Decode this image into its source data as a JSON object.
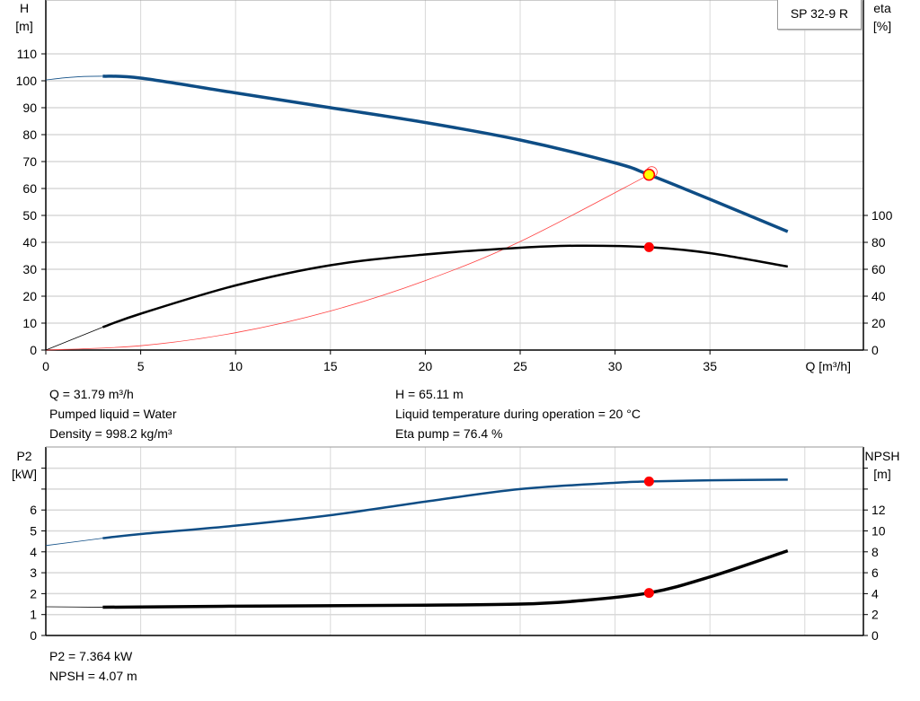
{
  "model_label": "SP 32-9 R",
  "colors": {
    "head": "#0e4d85",
    "eta": "#000000",
    "system": "#ff4040",
    "p2": "#0e4d85",
    "npsh": "#000000",
    "duty_point": "#ff0000",
    "head_point": "#ffff00",
    "grid": "#d8d8d8"
  },
  "info_top": [
    "Q = 31.79 m³/h",
    "Pumped liquid = Water",
    "Density = 998.2 kg/m³",
    "H = 65.11 m",
    "Liquid temperature during operation = 20 °C",
    "Eta pump = 76.4 %"
  ],
  "info_bottom": [
    "P2 = 7.364 kW",
    "NPSH = 4.07 m"
  ],
  "chart_data": [
    {
      "type": "line",
      "xlabel": "Q [m³/h]",
      "ylabel": "H [m]",
      "y2label": "eta [%]",
      "xlim": [
        0,
        43
      ],
      "ylim": [
        0,
        120
      ],
      "y2lim": [
        0,
        260
      ],
      "xticks": [
        0,
        5,
        10,
        15,
        20,
        25,
        30,
        35
      ],
      "yticks": [
        0,
        10,
        20,
        30,
        40,
        50,
        60,
        70,
        80,
        90,
        100,
        110
      ],
      "y2ticks": [
        0,
        20,
        40,
        60,
        80,
        100
      ],
      "grid": true,
      "series": [
        {
          "name": "H",
          "axis": "left",
          "x": [
            0,
            1,
            2,
            3,
            5,
            10,
            15,
            20,
            25,
            30,
            31.79,
            35,
            39.1
          ],
          "y": [
            100.3,
            101.1,
            101.6,
            101.7,
            101,
            95.5,
            90,
            84.5,
            78,
            69.5,
            65.11,
            56,
            44
          ]
        },
        {
          "name": "eta",
          "axis": "right",
          "x": [
            0,
            3,
            5,
            10,
            15,
            20,
            25,
            28,
            31.79,
            35,
            39.1
          ],
          "y": [
            0,
            17,
            27,
            48,
            63,
            71,
            76,
            77.5,
            76.4,
            72,
            62
          ]
        },
        {
          "name": "system",
          "axis": "left",
          "x": [
            0,
            5,
            10,
            15,
            20,
            25,
            31.79
          ],
          "y": [
            0,
            1.61,
            6.44,
            14.5,
            25.8,
            40.3,
            65.11
          ]
        }
      ],
      "duty_point": {
        "Q": 31.79,
        "H": 65.11,
        "eta": 76.4
      }
    },
    {
      "type": "line",
      "ylabel": "P2 [kW]",
      "y2label": "NPSH [m]",
      "xlim": [
        0,
        43
      ],
      "ylim": [
        0,
        8.7
      ],
      "y2lim": [
        0,
        17.4
      ],
      "yticks": [
        0,
        1,
        2,
        3,
        4,
        5,
        6,
        7,
        8
      ],
      "ytick_labels": [
        "0",
        "1",
        "2",
        "3",
        "4",
        "5",
        "6",
        "",
        ""
      ],
      "y2ticks": [
        0,
        2,
        4,
        6,
        8,
        10,
        12,
        14,
        16
      ],
      "y2tick_labels": [
        "0",
        "2",
        "4",
        "6",
        "8",
        "10",
        "12",
        "",
        ""
      ],
      "grid": true,
      "series": [
        {
          "name": "P2",
          "axis": "left",
          "x": [
            0,
            3,
            5,
            10,
            15,
            20,
            25,
            30,
            31.79,
            35,
            39.1
          ],
          "y": [
            4.3,
            4.65,
            4.85,
            5.25,
            5.75,
            6.4,
            7.0,
            7.3,
            7.364,
            7.42,
            7.45
          ]
        },
        {
          "name": "NPSH",
          "axis": "right",
          "x": [
            0,
            3,
            10,
            20,
            25,
            28,
            31.79,
            35,
            39.1
          ],
          "y": [
            2.75,
            2.7,
            2.8,
            2.9,
            3.0,
            3.3,
            4.07,
            5.6,
            8.1
          ]
        }
      ],
      "duty_point": {
        "Q": 31.79,
        "P2": 7.364,
        "NPSH": 4.07
      }
    }
  ]
}
